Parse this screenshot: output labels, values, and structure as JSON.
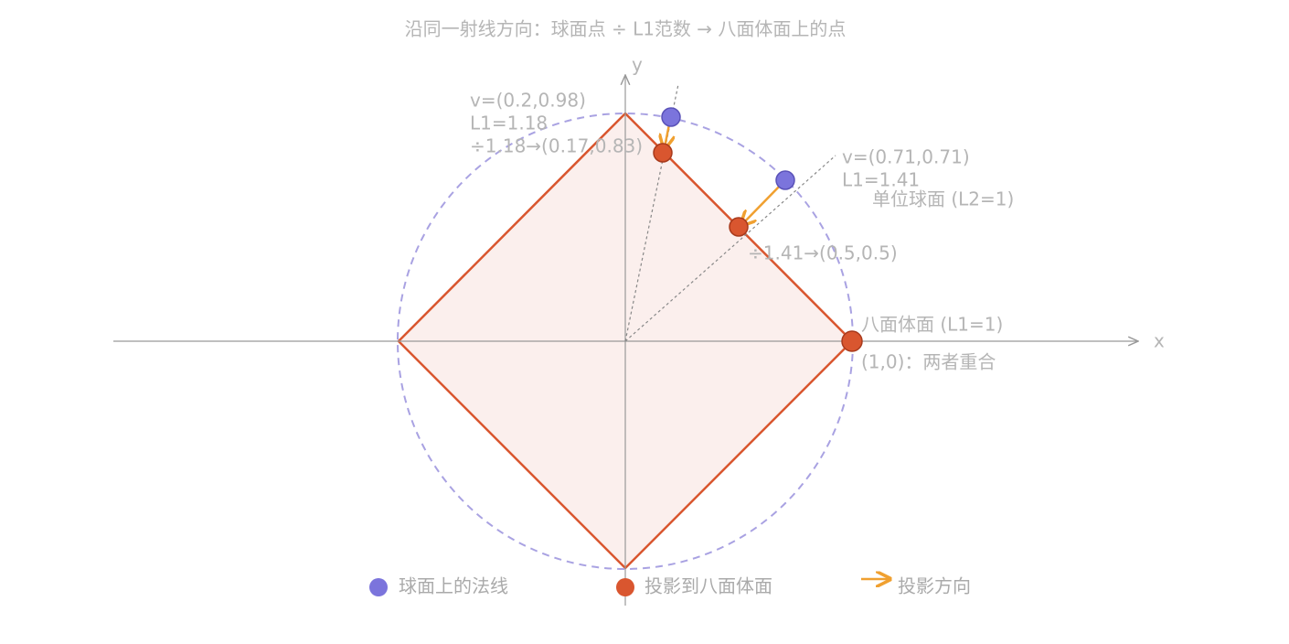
{
  "title": "沿同一射线方向：球面点 ÷ L1范数 → 八面体面上的点",
  "axes": {
    "x": "x",
    "y": "y"
  },
  "point_a": {
    "vector": "v=(0.2,0.98)",
    "norm": "L1=1.18",
    "result": "÷1.18→(0.17,0.83)"
  },
  "point_b": {
    "vector": "v=(0.71,0.71)",
    "norm": "L1=1.41",
    "result": "÷1.41→(0.5,0.5)"
  },
  "sphere_label": "单位球面 (L2=1)",
  "octahedron_label": "八面体面 (L1=1)",
  "coincide_label": "(1,0)：两者重合",
  "legend": [
    "球面上的法线",
    "投影到八面体面",
    "投影方向"
  ]
}
